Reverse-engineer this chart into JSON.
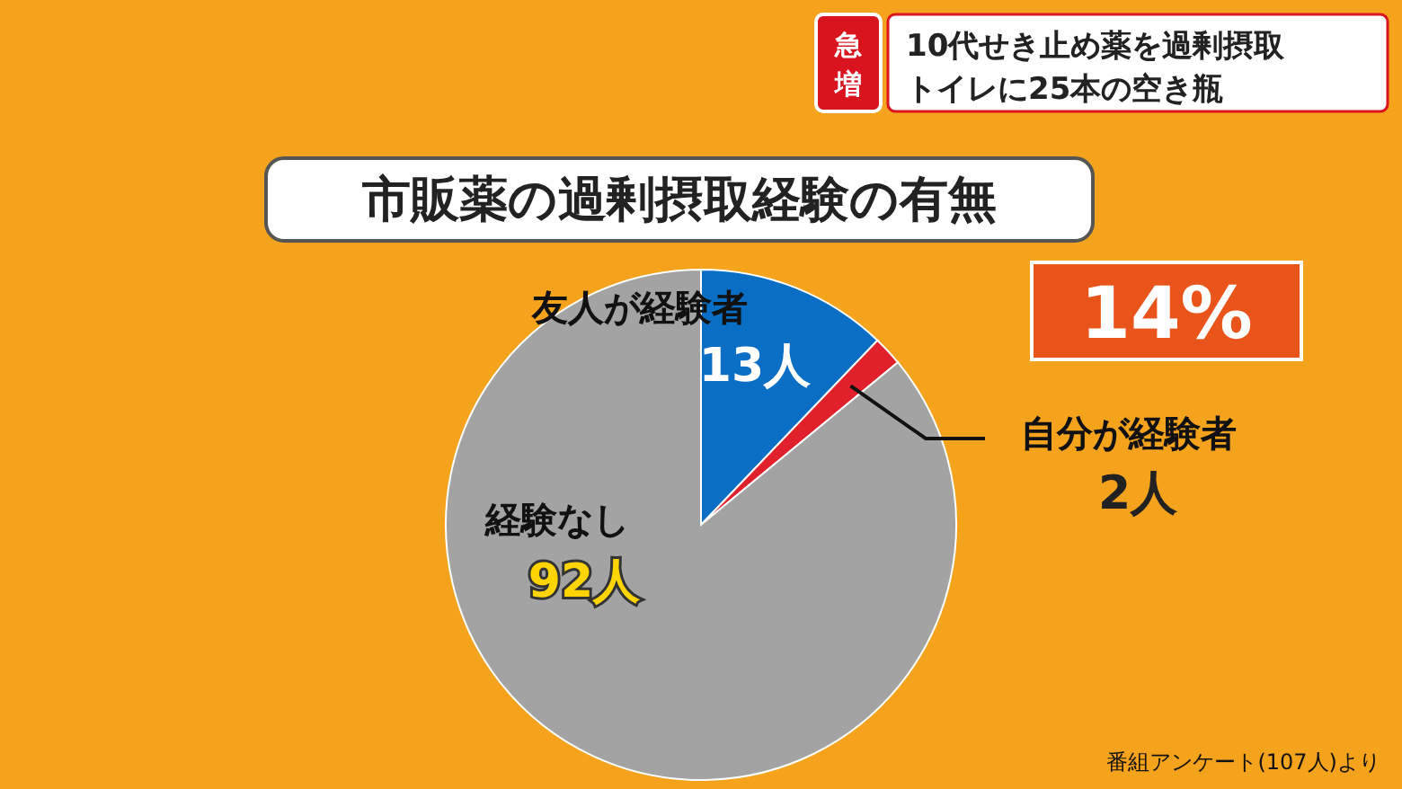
{
  "chart_data": {
    "type": "pie",
    "title": "市販薬の過剰摂取経験の有無",
    "categories": [
      "友人が経験者",
      "自分が経験者",
      "経験なし"
    ],
    "values": [
      13,
      2,
      92
    ],
    "colors": [
      "#0a6fc4",
      "#e0202a",
      "#a3a3a3"
    ],
    "value_labels": [
      "13人",
      "2人",
      "92人"
    ],
    "annotations": [
      "急増",
      "10代せき止め薬を過剰摂取",
      "トイレに25本の空き瓶",
      "14%",
      "番組アンケート(107人)より"
    ]
  }
}
